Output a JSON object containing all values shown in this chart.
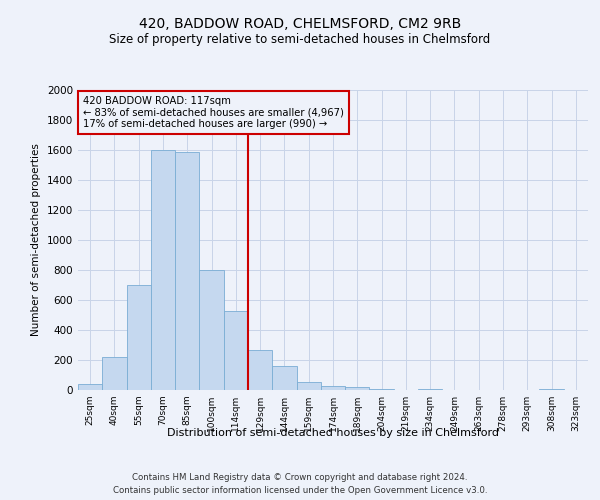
{
  "title": "420, BADDOW ROAD, CHELMSFORD, CM2 9RB",
  "subtitle": "Size of property relative to semi-detached houses in Chelmsford",
  "xlabel": "Distribution of semi-detached houses by size in Chelmsford",
  "ylabel": "Number of semi-detached properties",
  "footer1": "Contains HM Land Registry data © Crown copyright and database right 2024.",
  "footer2": "Contains public sector information licensed under the Open Government Licence v3.0.",
  "categories": [
    "25sqm",
    "40sqm",
    "55sqm",
    "70sqm",
    "85sqm",
    "100sqm",
    "114sqm",
    "129sqm",
    "144sqm",
    "159sqm",
    "174sqm",
    "189sqm",
    "204sqm",
    "219sqm",
    "234sqm",
    "249sqm",
    "263sqm",
    "278sqm",
    "293sqm",
    "308sqm",
    "323sqm"
  ],
  "values": [
    40,
    220,
    700,
    1600,
    1590,
    800,
    530,
    270,
    160,
    55,
    30,
    20,
    10,
    0,
    10,
    0,
    0,
    0,
    0,
    10,
    0
  ],
  "bar_color": "#c5d8ef",
  "bar_edge_color": "#7aadd4",
  "ylim": [
    0,
    2000
  ],
  "yticks": [
    0,
    200,
    400,
    600,
    800,
    1000,
    1200,
    1400,
    1600,
    1800,
    2000
  ],
  "vline_x": 6.5,
  "vline_color": "#cc0000",
  "annotation_text": "420 BADDOW ROAD: 117sqm\n← 83% of semi-detached houses are smaller (4,967)\n17% of semi-detached houses are larger (990) →",
  "grid_color": "#c8d4e8",
  "bg_color": "#eef2fa",
  "title_fontsize": 10,
  "subtitle_fontsize": 8.5
}
